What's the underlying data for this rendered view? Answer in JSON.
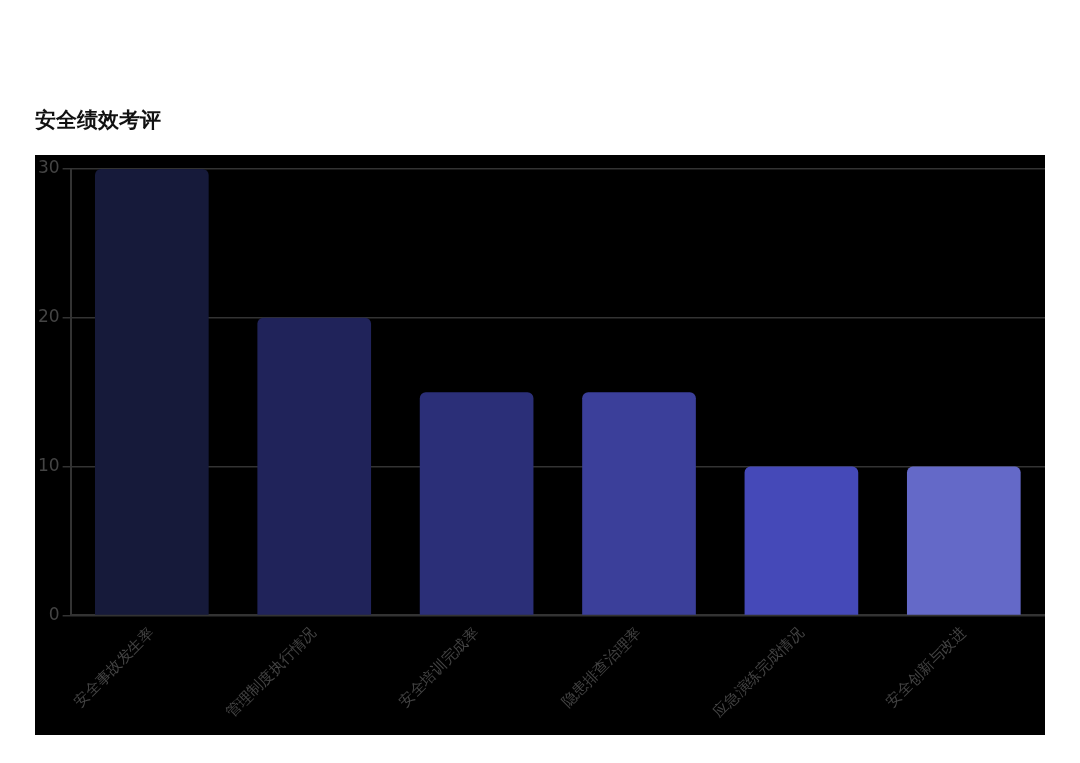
{
  "chart_data": {
    "type": "bar",
    "title": "安全绩效考评",
    "categories": [
      "安全事故发生率",
      "管理制度执行情况",
      "安全培训完成率",
      "隐患排查治理率",
      "应急演练完成情况",
      "安全创新与改进"
    ],
    "values": [
      30,
      20,
      15,
      15,
      10,
      10
    ],
    "colors": [
      "#161a3a",
      "#20235a",
      "#2b2f78",
      "#3b3f9a",
      "#4549b8",
      "#6469c8"
    ],
    "ylim": [
      0,
      30
    ],
    "yticks": [
      0,
      10,
      20,
      30
    ],
    "grid": "y",
    "legend": false
  }
}
